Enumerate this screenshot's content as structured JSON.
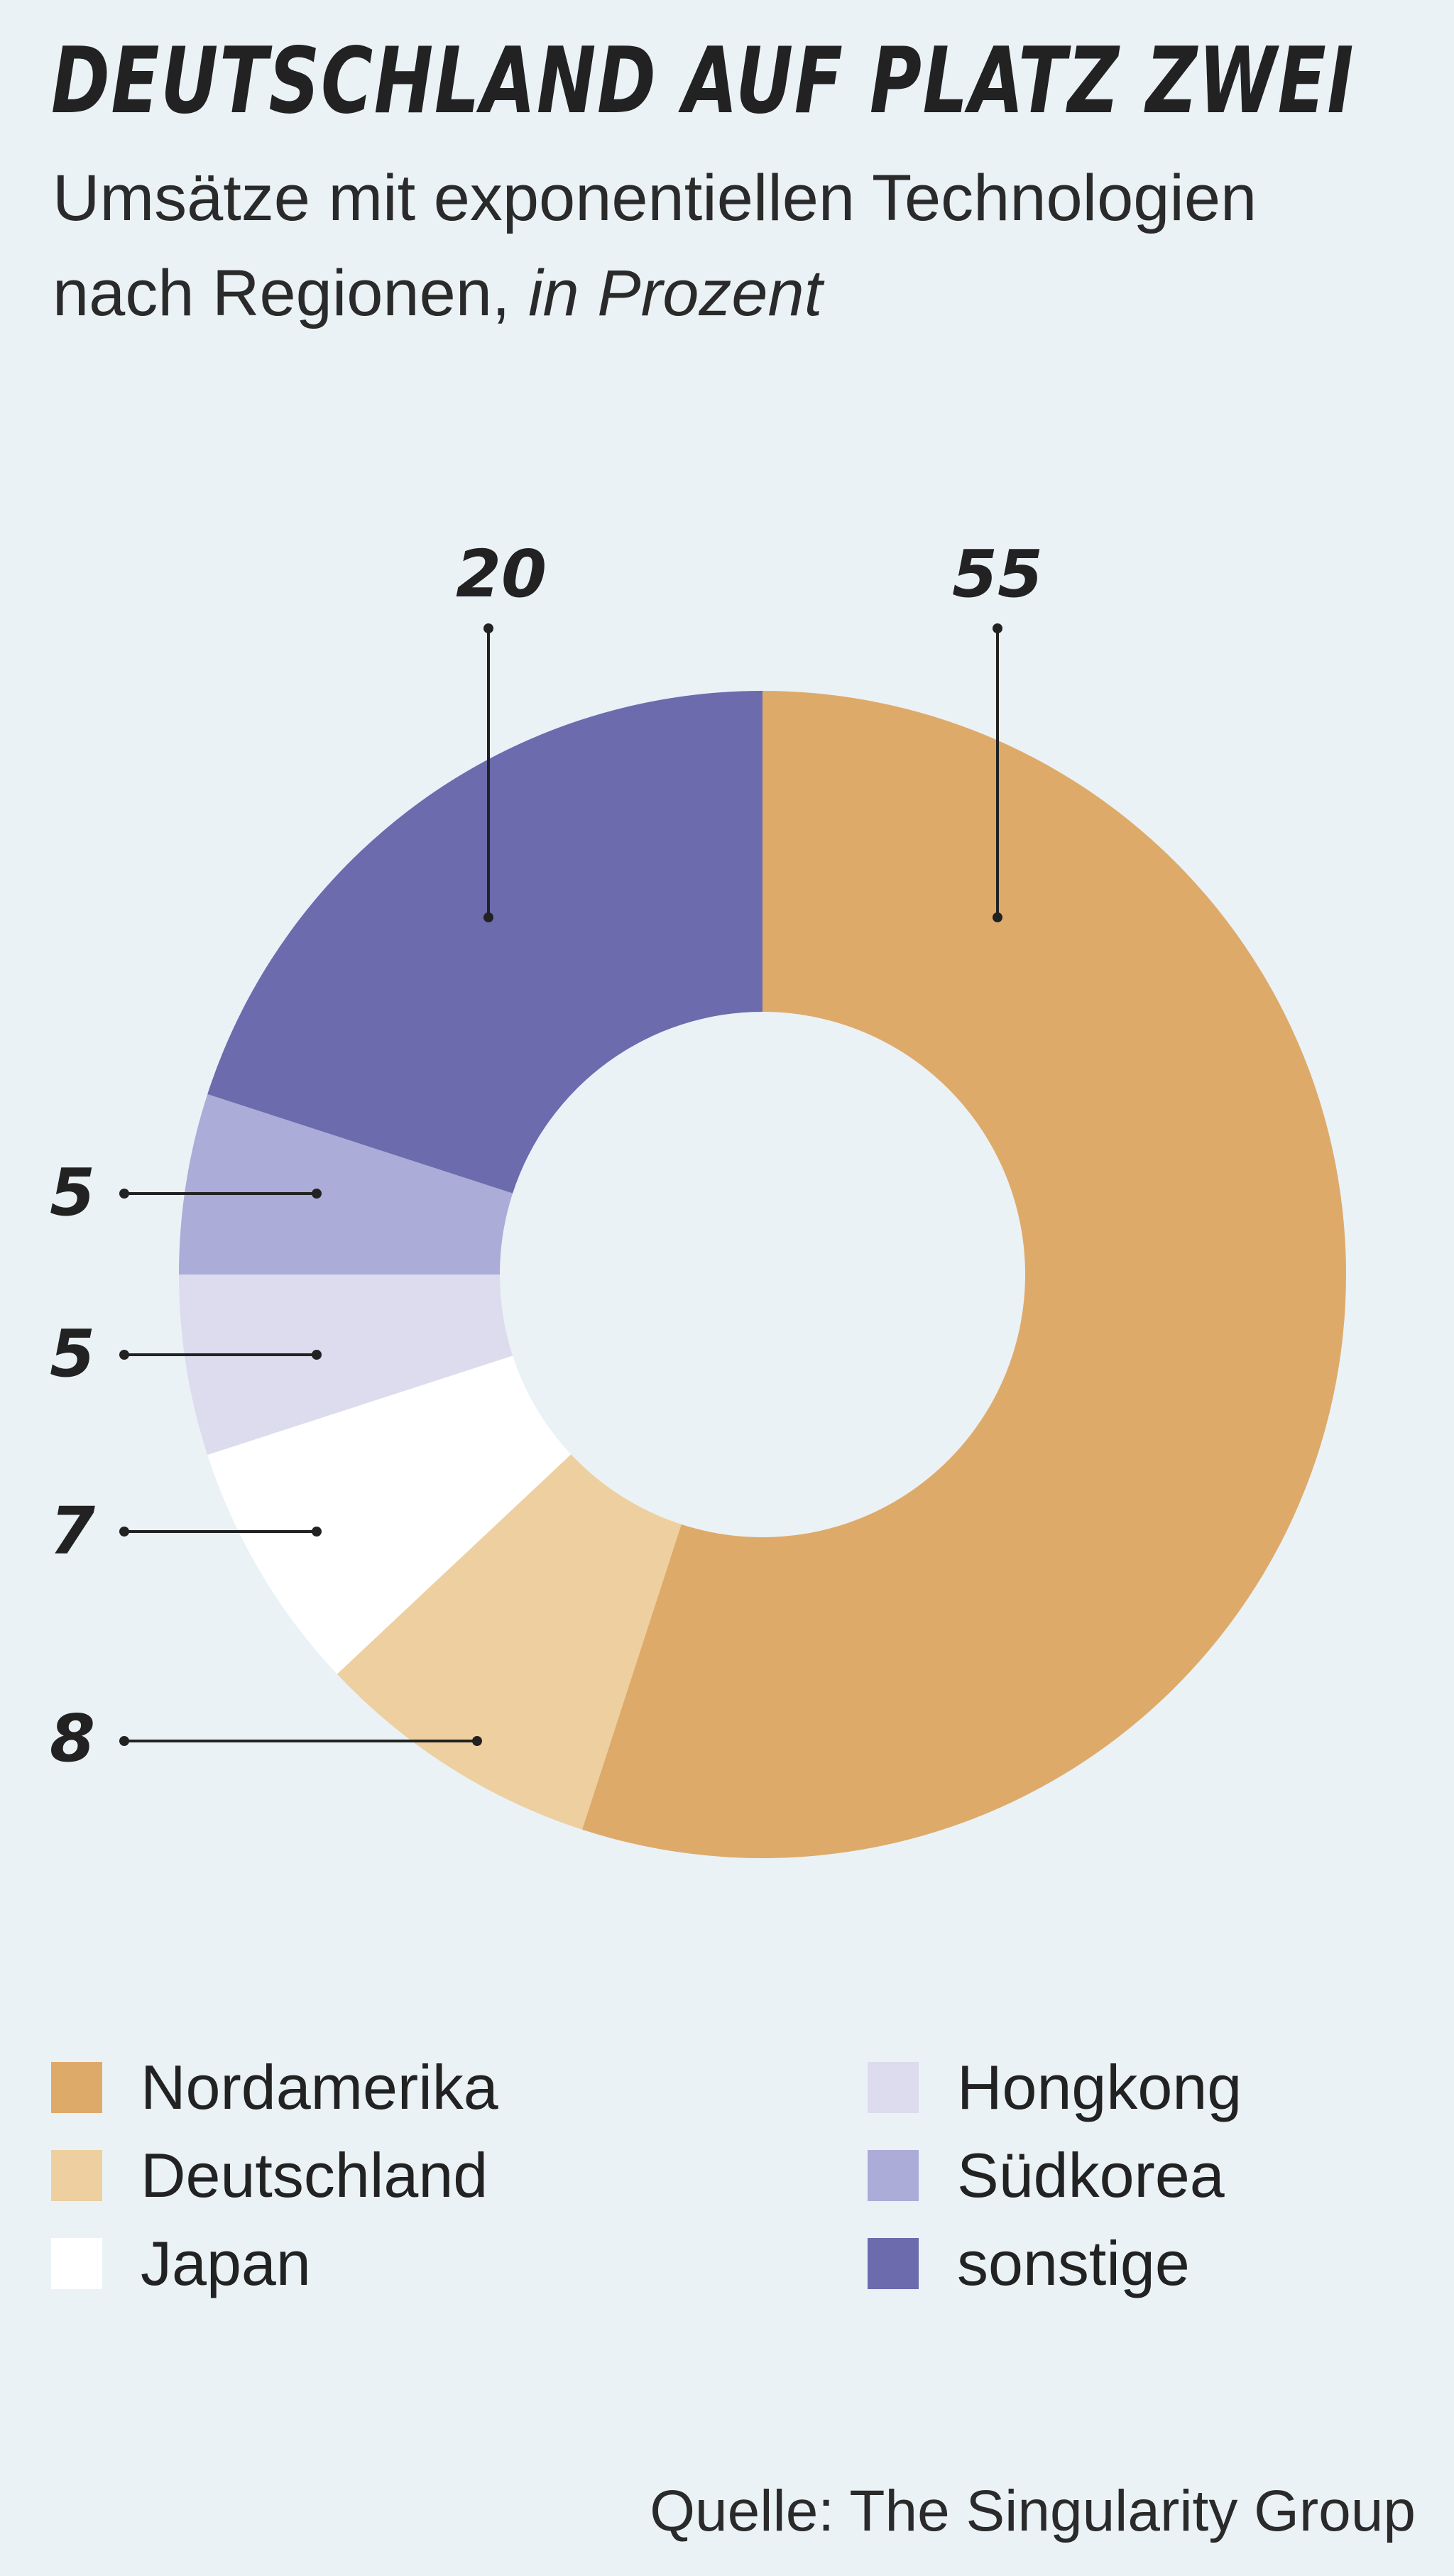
{
  "chart_data": {
    "type": "pie",
    "variant": "donut",
    "title": "DEUTSCHLAND AUF PLATZ ZWEI",
    "subtitle": "Umsätze mit exponentiellen Technologien nach Regionen,",
    "unit_label": "in Prozent",
    "slices": [
      {
        "name": "Nordamerika",
        "value": 55,
        "label": "55",
        "color": "#deaa6a"
      },
      {
        "name": "Deutschland",
        "value": 8,
        "label": "8",
        "color": "#eecf9f"
      },
      {
        "name": "Japan",
        "value": 7,
        "label": "7",
        "color": "#ffffff"
      },
      {
        "name": "Hongkong",
        "value": 5,
        "label": "5",
        "color": "#dcdcee"
      },
      {
        "name": "Südkorea",
        "value": 5,
        "label": "5",
        "color": "#acacd8"
      },
      {
        "name": "sonstige",
        "value": 20,
        "label": "20",
        "color": "#6b6bae"
      }
    ],
    "legend_placement": "bottom",
    "source": "Quelle: The Singularity Group"
  },
  "colors": {
    "background": "#eaf2f6",
    "text": "#222222",
    "leader_line": "#222222"
  }
}
